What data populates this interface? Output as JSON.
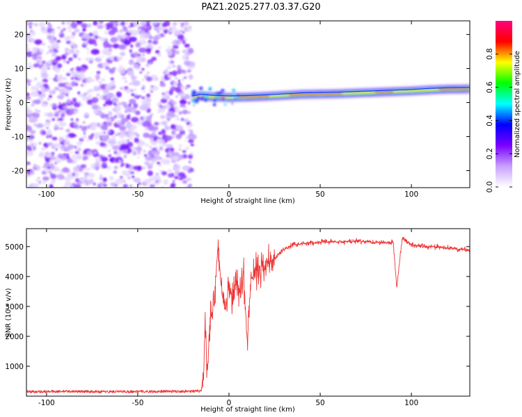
{
  "title": "PAZ1.2025.277.03.37.G20",
  "chart_data": [
    {
      "type": "heatmap",
      "name": "spectrogram",
      "xlabel": "Height of straight line (km)",
      "ylabel": "Frequency (Hz)",
      "xlim": [
        -111,
        132
      ],
      "ylim": [
        -25,
        24
      ],
      "xticks": [
        -100,
        -50,
        0,
        50,
        100
      ],
      "yticks": [
        -20,
        -10,
        0,
        10,
        20
      ],
      "xtick_labels": [
        "-100",
        "-50",
        "0",
        "50",
        "100"
      ],
      "ytick_labels": [
        "-20",
        "-10",
        "0",
        "10",
        "20"
      ],
      "noise_region_x": [
        -111,
        -20
      ],
      "signal_trace": {
        "x": [
          -20,
          -15,
          -10,
          -5,
          0,
          10,
          20,
          30,
          40,
          50,
          60,
          70,
          80,
          90,
          100,
          110,
          120,
          132
        ],
        "frequency": [
          1.5,
          2.0,
          1.7,
          1.6,
          1.5,
          1.6,
          1.8,
          2.1,
          2.4,
          2.5,
          2.6,
          2.8,
          3.0,
          3.2,
          3.4,
          3.7,
          3.9,
          4.0
        ]
      },
      "colorbar": {
        "label": "Normalized spectral amplitude",
        "range": [
          0,
          1
        ],
        "ticks": [
          0.0,
          0.2,
          0.4,
          0.6,
          0.8
        ],
        "tick_labels": [
          "0.0",
          "0.2",
          "0.4",
          "0.6",
          "0.8"
        ],
        "colors": [
          "#ffffff",
          "#c8a0ff",
          "#7a00ff",
          "#0000ff",
          "#00ffff",
          "#00ff00",
          "#ffff00",
          "#ff0000",
          "#ff007f"
        ]
      }
    },
    {
      "type": "line",
      "name": "snr",
      "xlabel": "Height of straight line (km)",
      "ylabel": "SNR (10 * v/v)",
      "xlim": [
        -111,
        132
      ],
      "ylim": [
        0,
        5600
      ],
      "xticks": [
        -100,
        -50,
        0,
        50,
        100
      ],
      "yticks": [
        1000,
        2000,
        3000,
        4000,
        5000
      ],
      "xtick_labels": [
        "-100",
        "-50",
        "0",
        "50",
        "100"
      ],
      "ytick_labels": [
        "1000",
        "2000",
        "3000",
        "4000",
        "5000"
      ],
      "color": "#ee3333",
      "series": {
        "x": [
          -111,
          -90,
          -70,
          -50,
          -30,
          -15,
          -14,
          -13,
          -12,
          -10,
          -8,
          -6,
          -4,
          -2,
          0,
          2,
          4,
          6,
          8,
          10,
          12,
          15,
          20,
          25,
          30,
          35,
          40,
          50,
          60,
          70,
          80,
          90,
          92,
          95,
          100,
          110,
          120,
          132
        ],
        "y": [
          150,
          160,
          150,
          155,
          160,
          170,
          400,
          2400,
          900,
          2600,
          3100,
          5100,
          3500,
          2800,
          3600,
          3200,
          3900,
          3500,
          4100,
          1800,
          3900,
          4200,
          4400,
          4600,
          4900,
          5050,
          5100,
          5150,
          5150,
          5180,
          5150,
          5150,
          3650,
          5300,
          5050,
          5000,
          4950,
          4900
        ]
      }
    }
  ]
}
